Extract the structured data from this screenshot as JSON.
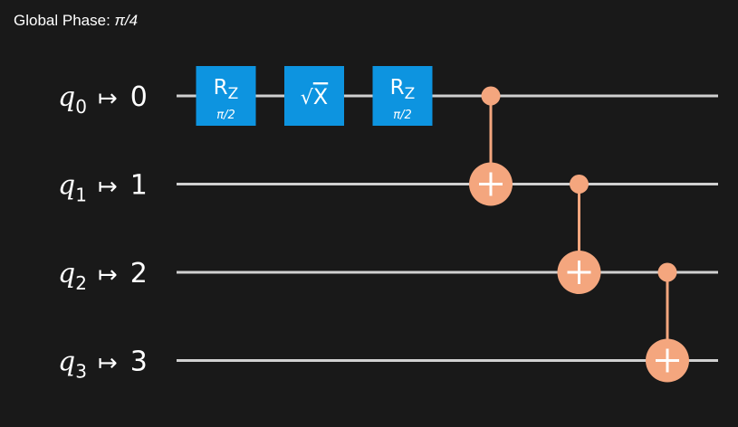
{
  "global_phase": {
    "label": "Global Phase: ",
    "value": "π/4"
  },
  "qubits": [
    {
      "name": "q",
      "index": "0",
      "arrow": "↦",
      "target": "0"
    },
    {
      "name": "q",
      "index": "1",
      "arrow": "↦",
      "target": "1"
    },
    {
      "name": "q",
      "index": "2",
      "arrow": "↦",
      "target": "2"
    },
    {
      "name": "q",
      "index": "3",
      "arrow": "↦",
      "target": "3"
    }
  ],
  "gates": [
    {
      "id": "rz-1",
      "kind": "rz",
      "qubit": 0,
      "column": 0,
      "label": "R",
      "subscript": "Z",
      "param": "π/2"
    },
    {
      "id": "sx-1",
      "kind": "sx",
      "qubit": 0,
      "column": 1,
      "radical": "√",
      "label": "X"
    },
    {
      "id": "rz-2",
      "kind": "rz",
      "qubit": 0,
      "column": 2,
      "label": "R",
      "subscript": "Z",
      "param": "π/2"
    },
    {
      "id": "cx-1",
      "kind": "cx",
      "control": 0,
      "target": 1,
      "column": 3
    },
    {
      "id": "cx-2",
      "kind": "cx",
      "control": 1,
      "target": 2,
      "column": 4
    },
    {
      "id": "cx-3",
      "kind": "cx",
      "control": 2,
      "target": 3,
      "column": 5
    }
  ],
  "colors": {
    "background": "#191919",
    "wire": "#d0d0d0",
    "single_gate": "#0d94e0",
    "cx_gate": "#f4a67e",
    "text": "#ffffff"
  }
}
